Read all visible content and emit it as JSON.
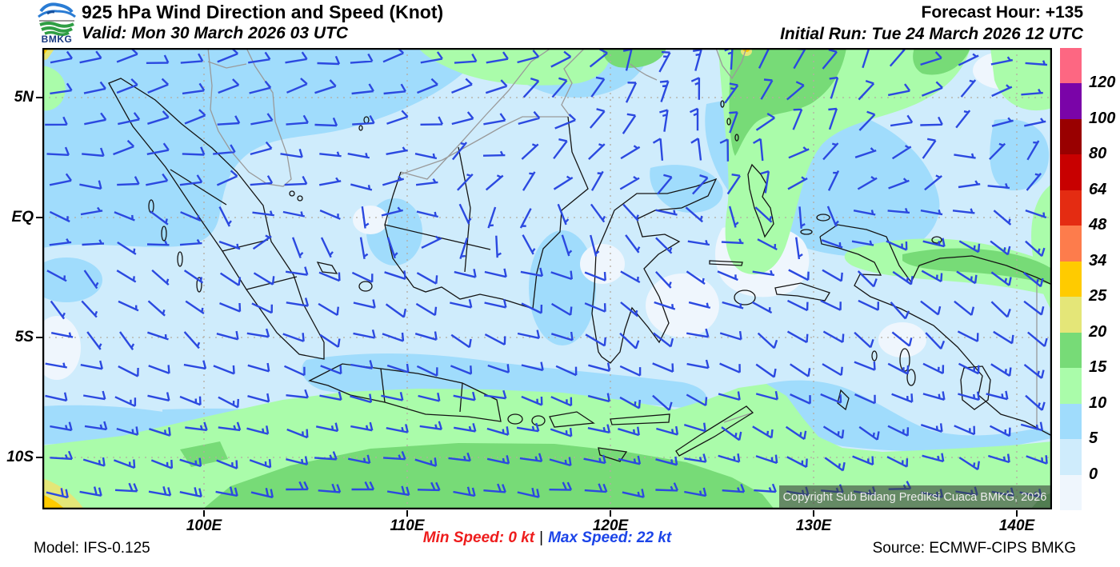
{
  "header": {
    "logo_text": "BMKG",
    "title": "925 hPa Wind Direction and Speed (Knot)",
    "valid": "Valid: Mon 30 March 2026 03 UTC",
    "forecast_hour": "Forecast Hour: +135",
    "initial_run": "Initial Run: Tue 24 March 2026 12 UTC"
  },
  "map": {
    "copyright": "Copyright Sub Bidang Prediksi Cuaca BMKG, 2026"
  },
  "footer": {
    "model": "Model: IFS-0.125",
    "min_speed": "Min Speed:  0 kt",
    "separator": "|",
    "max_speed": "Max Speed:  22 kt",
    "source": "Source: ECMWF-CIPS BMKG"
  },
  "chart_data": {
    "type": "heatmap",
    "variable": "925 hPa wind direction and speed (wind barbs over filled speed contours)",
    "units": "knot",
    "legend_labels_top_to_bottom": [
      "120",
      "100",
      "80",
      "64",
      "48",
      "34",
      "25",
      "20",
      "15",
      "10",
      "5",
      "0"
    ],
    "legend_colors_top_to_bottom": [
      "#fd6782",
      "#7a04a8",
      "#990000",
      "#c80000",
      "#e42c12",
      "#fd7c4c",
      "#ffcb00",
      "#e4e678",
      "#77db77",
      "#aafcaa",
      "#a0dcfc",
      "#cfecfc",
      "#eff6fd"
    ],
    "lat_ticks": [
      "5N",
      "EQ",
      "5S",
      "10S"
    ],
    "lon_ticks": [
      "100E",
      "110E",
      "120E",
      "130E",
      "140E"
    ],
    "min_speed_kt": 0,
    "max_speed_kt": 22,
    "barb_color": "#2b49e0",
    "region": "Indonesia",
    "gridlines": "dotted gray every 5 deg latitude / 10 deg longitude"
  }
}
